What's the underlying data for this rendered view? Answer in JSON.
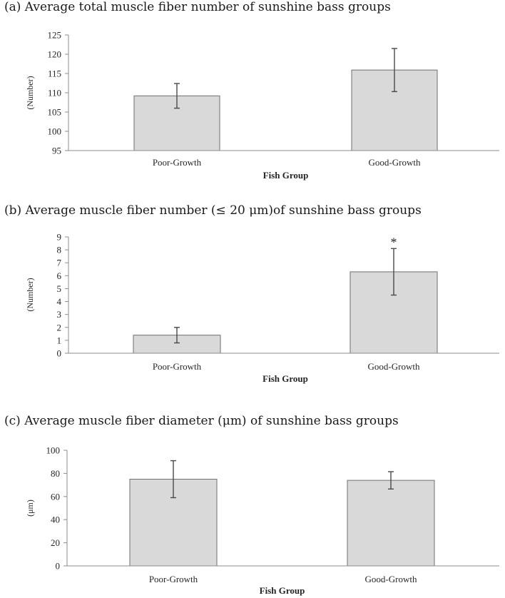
{
  "chart_data": [
    {
      "id": "a",
      "type": "bar",
      "title": "(a) Average total muscle fiber number of sunshine bass groups",
      "categories": [
        "Poor-Growth",
        "Good-Growth"
      ],
      "values": [
        109.2,
        115.9
      ],
      "errors": [
        3.2,
        5.6
      ],
      "annotations": [
        "",
        ""
      ],
      "xlabel": "Fish Group",
      "ylabel": "(Number)",
      "ylim": [
        95,
        125
      ],
      "ticks": [
        95,
        100,
        105,
        110,
        115,
        120,
        125
      ]
    },
    {
      "id": "b",
      "type": "bar",
      "title": "(b) Average muscle fiber number (≤ 20 μm)of sunshine bass groups",
      "categories": [
        "Poor-Growth",
        "Good-Growth"
      ],
      "values": [
        1.4,
        6.3
      ],
      "errors": [
        0.6,
        1.8
      ],
      "annotations": [
        "",
        "*"
      ],
      "xlabel": "Fish Group",
      "ylabel": "(Number)",
      "ylim": [
        0,
        9
      ],
      "ticks": [
        0,
        1,
        2,
        3,
        4,
        5,
        6,
        7,
        8,
        9
      ]
    },
    {
      "id": "c",
      "type": "bar",
      "title": "(c) Average muscle fiber diameter (μm) of sunshine bass groups",
      "categories": [
        "Poor-Growth",
        "Good-Growth"
      ],
      "values": [
        75,
        74
      ],
      "errors": [
        16,
        7.5
      ],
      "annotations": [
        "",
        ""
      ],
      "xlabel": "Fish Group",
      "ylabel": "(μm)",
      "ylim": [
        0,
        100
      ],
      "ticks": [
        0,
        20,
        40,
        60,
        80,
        100
      ]
    }
  ],
  "colors": {
    "bar_fill": "#d9d9d9",
    "bar_stroke": "#6f6f6f",
    "axis": "#8c8c8c",
    "error_bar": "#4a4a4a"
  }
}
